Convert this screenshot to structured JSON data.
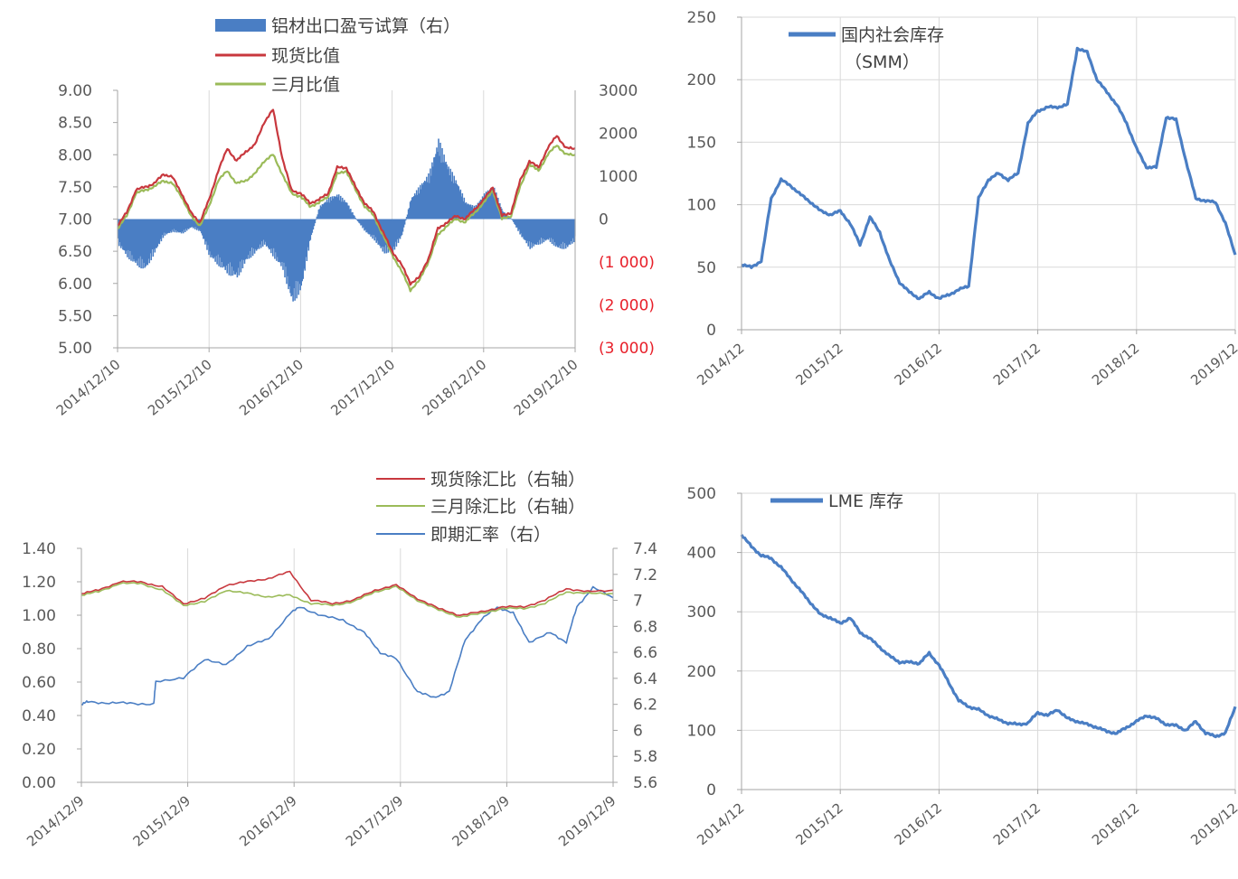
{
  "chart_data": [
    {
      "id": "c1",
      "type": "bar+line",
      "legend": [
        {
          "label": "铝材出口盈亏试算（右）",
          "color": "#4a7ec4",
          "kind": "bar"
        },
        {
          "label": "现货比值",
          "color": "#c8383e",
          "kind": "line"
        },
        {
          "label": "三月比值",
          "color": "#9bbb59",
          "kind": "line"
        }
      ],
      "x_ticks": [
        "2014/12/10",
        "2015/12/10",
        "2016/12/10",
        "2017/12/10",
        "2018/12/10",
        "2019/12/10"
      ],
      "y_left": {
        "ticks": [
          "9.00",
          "8.50",
          "8.00",
          "7.50",
          "7.00",
          "6.50",
          "6.00",
          "5.50",
          "5.00"
        ],
        "range": [
          5,
          9
        ]
      },
      "y_right": {
        "ticks": [
          "3000",
          "2000",
          "1000",
          "0",
          "(1 000)",
          "(2 000)",
          "(3 000)"
        ],
        "range": [
          -3000,
          3000
        ]
      },
      "series": [
        {
          "name": "铝材出口盈亏试算（右）",
          "type": "bar",
          "color": "#4a7ec4",
          "x": [
            2014.95,
            2015.05,
            2015.15,
            2015.25,
            2015.35,
            2015.45,
            2015.55,
            2015.65,
            2015.75,
            2015.85,
            2015.95,
            2016.05,
            2016.15,
            2016.25,
            2016.35,
            2016.45,
            2016.55,
            2016.65,
            2016.75,
            2016.85,
            2016.95,
            2017.05,
            2017.15,
            2017.25,
            2017.35,
            2017.45,
            2017.55,
            2017.65,
            2017.75,
            2017.85,
            2017.95,
            2018.05,
            2018.15,
            2018.25,
            2018.35,
            2018.45,
            2018.55,
            2018.65,
            2018.75,
            2018.85,
            2018.95,
            2019.05,
            2019.15,
            2019.25,
            2019.35,
            2019.45,
            2019.55,
            2019.65,
            2019.75,
            2019.85,
            2019.95
          ],
          "y": [
            -600,
            -900,
            -1100,
            -1200,
            -800,
            -400,
            -300,
            -350,
            -200,
            -300,
            -900,
            -1100,
            -1300,
            -1400,
            -1000,
            -800,
            -600,
            -900,
            -1200,
            -2000,
            -1700,
            -500,
            300,
            500,
            600,
            400,
            0,
            -300,
            -500,
            -800,
            -800,
            -400,
            500,
            800,
            1100,
            1900,
            1300,
            900,
            400,
            300,
            600,
            800,
            200,
            0,
            -400,
            -700,
            -600,
            -500,
            -700,
            -700,
            -500
          ]
        },
        {
          "name": "现货比值",
          "type": "line",
          "color": "#c8383e",
          "x": [
            2014.95,
            2015.05,
            2015.15,
            2015.25,
            2015.35,
            2015.45,
            2015.55,
            2015.65,
            2015.75,
            2015.85,
            2015.95,
            2016.05,
            2016.15,
            2016.25,
            2016.35,
            2016.45,
            2016.55,
            2016.65,
            2016.75,
            2016.85,
            2016.95,
            2017.05,
            2017.15,
            2017.25,
            2017.35,
            2017.45,
            2017.55,
            2017.65,
            2017.75,
            2017.85,
            2017.95,
            2018.05,
            2018.15,
            2018.25,
            2018.35,
            2018.45,
            2018.55,
            2018.65,
            2018.75,
            2018.85,
            2018.95,
            2019.05,
            2019.15,
            2019.25,
            2019.35,
            2019.45,
            2019.55,
            2019.65,
            2019.75,
            2019.85,
            2019.95
          ],
          "y": [
            6.9,
            7.1,
            7.45,
            7.5,
            7.55,
            7.7,
            7.65,
            7.4,
            7.1,
            6.95,
            7.3,
            7.75,
            8.1,
            7.9,
            8.05,
            8.15,
            8.5,
            8.7,
            7.95,
            7.45,
            7.4,
            7.25,
            7.3,
            7.4,
            7.8,
            7.8,
            7.5,
            7.25,
            7.1,
            6.8,
            6.5,
            6.3,
            6.0,
            6.1,
            6.4,
            6.85,
            6.95,
            7.05,
            7.0,
            7.15,
            7.3,
            7.5,
            7.05,
            7.1,
            7.6,
            7.9,
            7.8,
            8.1,
            8.3,
            8.1,
            8.1
          ]
        },
        {
          "name": "三月比值",
          "type": "line",
          "color": "#9bbb59",
          "x": [
            2014.95,
            2015.05,
            2015.15,
            2015.25,
            2015.35,
            2015.45,
            2015.55,
            2015.65,
            2015.75,
            2015.85,
            2015.95,
            2016.05,
            2016.15,
            2016.25,
            2016.35,
            2016.45,
            2016.55,
            2016.65,
            2016.75,
            2016.85,
            2016.95,
            2017.05,
            2017.15,
            2017.25,
            2017.35,
            2017.45,
            2017.55,
            2017.65,
            2017.75,
            2017.85,
            2017.95,
            2018.05,
            2018.15,
            2018.25,
            2018.35,
            2018.45,
            2018.55,
            2018.65,
            2018.75,
            2018.85,
            2018.95,
            2019.05,
            2019.15,
            2019.25,
            2019.35,
            2019.45,
            2019.55,
            2019.65,
            2019.75,
            2019.85,
            2019.95
          ],
          "y": [
            6.85,
            7.05,
            7.4,
            7.45,
            7.5,
            7.6,
            7.55,
            7.35,
            7.05,
            6.9,
            7.2,
            7.6,
            7.75,
            7.55,
            7.6,
            7.7,
            7.9,
            8.0,
            7.7,
            7.4,
            7.35,
            7.2,
            7.25,
            7.35,
            7.7,
            7.75,
            7.45,
            7.2,
            7.05,
            6.75,
            6.45,
            6.2,
            5.9,
            6.05,
            6.35,
            6.75,
            6.9,
            7.0,
            6.95,
            7.1,
            7.25,
            7.45,
            7.0,
            7.05,
            7.5,
            7.85,
            7.75,
            8.0,
            8.15,
            8.0,
            8.0
          ]
        }
      ]
    },
    {
      "id": "c2",
      "type": "line",
      "legend": [
        {
          "label": "国内社会库存",
          "color": "#4a7ec4"
        },
        {
          "label": "（SMM）",
          "color": ""
        }
      ],
      "x_ticks": [
        "2014/12",
        "2015/12",
        "2016/12",
        "2017/12",
        "2018/12",
        "2019/12"
      ],
      "y_ticks": [
        "250",
        "200",
        "150",
        "100",
        "50",
        "0"
      ],
      "ylim": [
        0,
        250
      ],
      "series": [
        {
          "name": "国内社会库存",
          "color": "#4a7ec4",
          "x": [
            2014.95,
            2015.05,
            2015.15,
            2015.25,
            2015.35,
            2015.45,
            2015.55,
            2015.65,
            2015.75,
            2015.85,
            2015.95,
            2016.05,
            2016.15,
            2016.25,
            2016.35,
            2016.45,
            2016.55,
            2016.65,
            2016.75,
            2016.85,
            2016.95,
            2017.05,
            2017.15,
            2017.25,
            2017.35,
            2017.45,
            2017.55,
            2017.65,
            2017.75,
            2017.85,
            2017.95,
            2018.05,
            2018.15,
            2018.25,
            2018.35,
            2018.45,
            2018.55,
            2018.65,
            2018.75,
            2018.85,
            2018.95,
            2019.05,
            2019.15,
            2019.25,
            2019.35,
            2019.45,
            2019.55,
            2019.65,
            2019.75,
            2019.85,
            2019.95
          ],
          "y": [
            52,
            50,
            55,
            105,
            120,
            115,
            108,
            102,
            95,
            92,
            95,
            85,
            68,
            90,
            78,
            55,
            38,
            30,
            25,
            30,
            25,
            28,
            32,
            35,
            105,
            120,
            125,
            120,
            125,
            165,
            175,
            178,
            178,
            180,
            225,
            222,
            200,
            190,
            180,
            165,
            145,
            130,
            130,
            170,
            168,
            135,
            105,
            103,
            102,
            85,
            60
          ]
        }
      ]
    },
    {
      "id": "c3",
      "type": "line",
      "legend": [
        {
          "label": "现货除汇比（右轴）",
          "color": "#c8383e"
        },
        {
          "label": "三月除汇比（右轴）",
          "color": "#9bbb59"
        },
        {
          "label": "即期汇率（右）",
          "color": "#4a7ec4"
        }
      ],
      "x_ticks": [
        "2014/12/9",
        "2015/12/9",
        "2016/12/9",
        "2017/12/9",
        "2018/12/9",
        "2019/12/9"
      ],
      "y_left": {
        "ticks": [
          "1.40",
          "1.20",
          "1.00",
          "0.80",
          "0.60",
          "0.40",
          "0.20",
          "0.00"
        ],
        "range": [
          0,
          1.4
        ]
      },
      "y_right": {
        "ticks": [
          "7.4",
          "7.2",
          "7",
          "6.8",
          "6.6",
          "6.4",
          "6.2",
          "6",
          "5.8",
          "5.6"
        ],
        "range": [
          5.6,
          7.4
        ]
      },
      "series": [
        {
          "name": "现货除汇比（右轴）",
          "axis": "left",
          "color": "#c8383e",
          "x": [
            2014.94,
            2015.1,
            2015.3,
            2015.5,
            2015.7,
            2015.9,
            2016.1,
            2016.3,
            2016.5,
            2016.7,
            2016.9,
            2017.1,
            2017.3,
            2017.5,
            2017.7,
            2017.9,
            2018.1,
            2018.3,
            2018.5,
            2018.7,
            2018.9,
            2019.1,
            2019.3,
            2019.5,
            2019.7,
            2019.94
          ],
          "y": [
            1.13,
            1.15,
            1.2,
            1.2,
            1.17,
            1.07,
            1.1,
            1.18,
            1.2,
            1.22,
            1.26,
            1.09,
            1.07,
            1.09,
            1.15,
            1.18,
            1.1,
            1.04,
            1.0,
            1.02,
            1.05,
            1.05,
            1.09,
            1.16,
            1.14,
            1.15
          ]
        },
        {
          "name": "三月除汇比（右轴）",
          "axis": "left",
          "color": "#9bbb59",
          "x": [
            2014.94,
            2015.1,
            2015.3,
            2015.5,
            2015.7,
            2015.9,
            2016.1,
            2016.3,
            2016.5,
            2016.7,
            2016.9,
            2017.1,
            2017.3,
            2017.5,
            2017.7,
            2017.9,
            2018.1,
            2018.3,
            2018.5,
            2018.7,
            2018.9,
            2019.1,
            2019.3,
            2019.5,
            2019.7,
            2019.94
          ],
          "y": [
            1.12,
            1.14,
            1.19,
            1.19,
            1.15,
            1.06,
            1.08,
            1.15,
            1.13,
            1.11,
            1.12,
            1.07,
            1.06,
            1.08,
            1.14,
            1.17,
            1.09,
            1.03,
            0.99,
            1.01,
            1.04,
            1.04,
            1.07,
            1.14,
            1.13,
            1.13
          ]
        },
        {
          "name": "即期汇率（右）",
          "axis": "right",
          "color": "#4a7ec4",
          "x": [
            2014.94,
            2015.0,
            2015.2,
            2015.4,
            2015.62,
            2015.64,
            2015.9,
            2016.1,
            2016.3,
            2016.5,
            2016.7,
            2016.9,
            2017.0,
            2017.2,
            2017.4,
            2017.6,
            2017.75,
            2017.9,
            2018.1,
            2018.25,
            2018.4,
            2018.55,
            2018.7,
            2018.85,
            2019.0,
            2019.15,
            2019.35,
            2019.5,
            2019.6,
            2019.75,
            2019.94
          ],
          "y": [
            6.2,
            6.22,
            6.21,
            6.21,
            6.2,
            6.38,
            6.4,
            6.55,
            6.5,
            6.65,
            6.7,
            6.9,
            6.95,
            6.88,
            6.85,
            6.75,
            6.6,
            6.55,
            6.3,
            6.25,
            6.3,
            6.7,
            6.85,
            6.95,
            6.9,
            6.68,
            6.75,
            6.68,
            6.95,
            7.1,
            7.02
          ]
        }
      ]
    },
    {
      "id": "c4",
      "type": "line",
      "legend": [
        {
          "label": "LME 库存",
          "color": "#4a7ec4"
        }
      ],
      "x_ticks": [
        "2014/12",
        "2015/12",
        "2016/12",
        "2017/12",
        "2018/12",
        "2019/12"
      ],
      "y_ticks": [
        "500",
        "400",
        "300",
        "200",
        "100",
        "0"
      ],
      "ylim": [
        0,
        500
      ],
      "series": [
        {
          "name": "LME 库存",
          "color": "#4a7ec4",
          "x": [
            2014.95,
            2015.05,
            2015.15,
            2015.25,
            2015.35,
            2015.45,
            2015.55,
            2015.65,
            2015.75,
            2015.85,
            2015.95,
            2016.05,
            2016.15,
            2016.25,
            2016.35,
            2016.45,
            2016.55,
            2016.65,
            2016.75,
            2016.85,
            2016.95,
            2017.05,
            2017.15,
            2017.25,
            2017.35,
            2017.45,
            2017.55,
            2017.65,
            2017.75,
            2017.85,
            2017.95,
            2018.05,
            2018.15,
            2018.25,
            2018.35,
            2018.45,
            2018.55,
            2018.65,
            2018.75,
            2018.85,
            2018.95,
            2019.05,
            2019.15,
            2019.25,
            2019.35,
            2019.45,
            2019.55,
            2019.65,
            2019.75,
            2019.85,
            2019.95
          ],
          "y": [
            430,
            410,
            395,
            390,
            375,
            355,
            335,
            315,
            295,
            290,
            280,
            290,
            265,
            255,
            240,
            225,
            215,
            215,
            213,
            230,
            210,
            180,
            150,
            140,
            135,
            125,
            118,
            112,
            110,
            112,
            130,
            125,
            135,
            120,
            115,
            110,
            105,
            98,
            95,
            105,
            115,
            125,
            120,
            110,
            108,
            100,
            115,
            95,
            90,
            95,
            140
          ]
        }
      ]
    }
  ]
}
